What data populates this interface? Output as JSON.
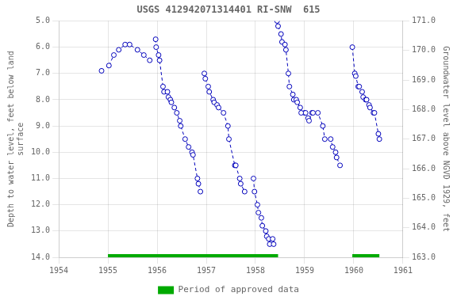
{
  "chart_data": {
    "type": "line",
    "title": "USGS 412942071314401 RI-SNW  615",
    "y_label": "Depth to water level, feet below land\nsurface",
    "y2_label": "Groundwater level above NGVD 1929, feet",
    "xlim": [
      1954,
      1961
    ],
    "xticks": [
      1954,
      1955,
      1956,
      1957,
      1958,
      1959,
      1960,
      1961
    ],
    "ylim": [
      14.0,
      5.0
    ],
    "yticks": [
      {
        "value": 5.0,
        "label": "5.0"
      },
      {
        "value": 6.0,
        "label": "6.0"
      },
      {
        "value": 7.0,
        "label": "7.0"
      },
      {
        "value": 8.0,
        "label": "8.0"
      },
      {
        "value": 9.0,
        "label": "9.0"
      },
      {
        "value": 10.0,
        "label": "10.0"
      },
      {
        "value": 11.0,
        "label": "11.0"
      },
      {
        "value": 12.0,
        "label": "12.0"
      },
      {
        "value": 13.0,
        "label": "13.0"
      },
      {
        "value": 14.0,
        "label": "14.0"
      }
    ],
    "y2lim": [
      163.0,
      171.0
    ],
    "y2ticks": [
      {
        "value": 163.0,
        "label": "163.0"
      },
      {
        "value": 164.0,
        "label": "164.0"
      },
      {
        "value": 165.0,
        "label": "165.0"
      },
      {
        "value": 166.0,
        "label": "166.0"
      },
      {
        "value": 167.0,
        "label": "167.0"
      },
      {
        "value": 168.0,
        "label": "168.0"
      },
      {
        "value": 169.0,
        "label": "169.0"
      },
      {
        "value": 170.0,
        "label": "170.0"
      },
      {
        "value": 171.0,
        "label": "171.0"
      }
    ],
    "grid": true,
    "legend": "bottom",
    "series": [
      {
        "color": "#0000bb",
        "marker": "circle",
        "line_style": "dashed",
        "x": [
          1954.87
        ],
        "values": [
          6.9
        ]
      },
      {
        "color": "#0000bb",
        "marker": "circle",
        "line_style": "dashed",
        "x": [
          1955.02,
          1955.12,
          1955.22,
          1955.35,
          1955.44,
          1955.6,
          1955.73,
          1955.85
        ],
        "values": [
          6.7,
          6.3,
          6.1,
          5.9,
          5.9,
          6.1,
          6.3,
          6.5
        ]
      },
      {
        "color": "#0000bb",
        "marker": "circle",
        "line_style": "dashed",
        "x": [
          1955.97,
          1955.98,
          1956.03,
          1956.05,
          1956.12,
          1956.14,
          1956.21,
          1956.23,
          1956.27,
          1956.29,
          1956.35,
          1956.4,
          1956.46,
          1956.48,
          1956.57,
          1956.64,
          1956.71,
          1956.73,
          1956.82,
          1956.84,
          1956.88
        ],
        "values": [
          5.7,
          6.0,
          6.3,
          6.5,
          7.5,
          7.7,
          7.7,
          7.9,
          8.0,
          8.1,
          8.3,
          8.5,
          8.8,
          9.0,
          9.5,
          9.8,
          10.0,
          10.1,
          11.0,
          11.2,
          11.5
        ]
      },
      {
        "color": "#0000bb",
        "marker": "circle",
        "line_style": "dashed",
        "x": [
          1956.96,
          1956.98,
          1957.04,
          1957.06,
          1957.14,
          1957.16,
          1957.22,
          1957.25,
          1957.35,
          1957.44,
          1957.46,
          1957.58,
          1957.6,
          1957.68,
          1957.7,
          1957.78
        ],
        "values": [
          7.0,
          7.2,
          7.5,
          7.7,
          8.0,
          8.1,
          8.2,
          8.3,
          8.5,
          9.0,
          9.5,
          10.5,
          10.5,
          11.0,
          11.2,
          11.5
        ]
      },
      {
        "color": "#0000bb",
        "marker": "circle",
        "line_style": "dashed",
        "x": [
          1957.96,
          1957.98,
          1958.04,
          1958.06,
          1958.12,
          1958.14,
          1958.21,
          1958.23,
          1958.27,
          1958.29,
          1958.35,
          1958.37
        ],
        "values": [
          11.0,
          11.5,
          12.0,
          12.3,
          12.5,
          12.8,
          13.0,
          13.2,
          13.3,
          13.5,
          13.3,
          13.5
        ]
      },
      {
        "color": "#0000bb",
        "marker": "circle",
        "line_style": "dashed",
        "x": [
          1958.44,
          1958.46,
          1958.52,
          1958.54,
          1958.6,
          1958.62,
          1958.67,
          1958.69,
          1958.76,
          1958.78,
          1958.83,
          1958.85,
          1958.91,
          1958.93
        ],
        "values": [
          5.0,
          5.2,
          5.5,
          5.8,
          5.9,
          6.1,
          7.0,
          7.5,
          7.8,
          8.0,
          8.0,
          8.1,
          8.3,
          8.5
        ]
      },
      {
        "color": "#0000bb",
        "marker": "circle",
        "line_style": "dashed",
        "x": [
          1959.0,
          1959.02,
          1959.07,
          1959.09,
          1959.15,
          1959.17,
          1959.27,
          1959.37,
          1959.41,
          1959.53,
          1959.57,
          1959.63,
          1959.65,
          1959.72
        ],
        "values": [
          8.5,
          8.5,
          8.7,
          8.8,
          8.5,
          8.5,
          8.5,
          9.0,
          9.5,
          9.5,
          9.8,
          10.0,
          10.2,
          10.5
        ]
      },
      {
        "color": "#0000bb",
        "marker": "circle",
        "line_style": "dashed",
        "x": [
          1959.97,
          1960.02,
          1960.04,
          1960.09,
          1960.11,
          1960.17,
          1960.19,
          1960.24,
          1960.26,
          1960.31,
          1960.33,
          1960.4,
          1960.42,
          1960.5,
          1960.52
        ],
        "values": [
          6.0,
          7.0,
          7.1,
          7.5,
          7.5,
          7.7,
          7.9,
          8.0,
          8.0,
          8.2,
          8.3,
          8.5,
          8.5,
          9.3,
          9.5
        ]
      },
      {
        "name": "Period of approved data",
        "type": "bar",
        "color": "#00aa00",
        "ranges": [
          [
            1955.0,
            1958.46
          ],
          [
            1959.97,
            1960.52
          ]
        ]
      }
    ]
  }
}
